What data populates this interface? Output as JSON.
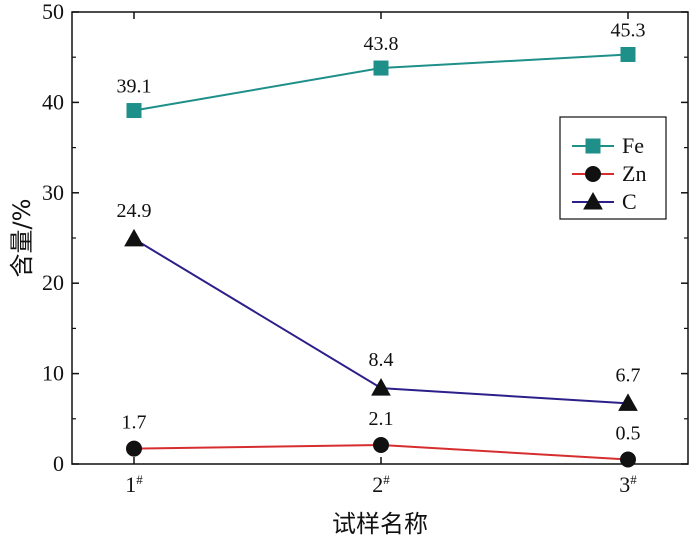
{
  "chart_data": {
    "type": "line",
    "categories": [
      "1#",
      "2#",
      "3#"
    ],
    "category_labels": [
      {
        "base": "1",
        "sup": "#"
      },
      {
        "base": "2",
        "sup": "#"
      },
      {
        "base": "3",
        "sup": "#"
      }
    ],
    "series": [
      {
        "name": "Fe",
        "values": [
          39.1,
          43.8,
          45.3
        ],
        "value_labels": [
          "39.1",
          "43.8",
          "45.3"
        ],
        "color": "#1f8f8a",
        "marker": "square"
      },
      {
        "name": "Zn",
        "values": [
          1.7,
          2.1,
          0.5
        ],
        "value_labels": [
          "1.7",
          "2.1",
          "0.5"
        ],
        "color": "#d62e2e",
        "marker": "circle"
      },
      {
        "name": "C",
        "values": [
          24.9,
          8.4,
          6.7
        ],
        "value_labels": [
          "24.9",
          "8.4",
          "6.7"
        ],
        "color": "#2c1f8a",
        "marker": "triangle"
      }
    ],
    "xlabel": "试样名称",
    "ylabel": "含量/%",
    "ylim": [
      0,
      50
    ],
    "yticks": [
      0,
      10,
      20,
      30,
      40,
      50
    ],
    "grid": false,
    "legend_position": "right"
  }
}
